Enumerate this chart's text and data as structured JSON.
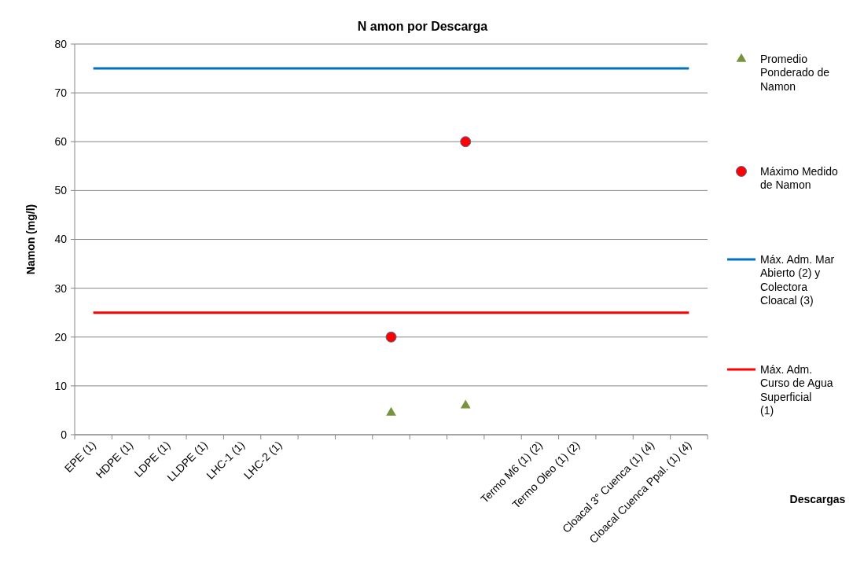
{
  "chart_data": {
    "type": "scatter",
    "title": "N amon por Descarga",
    "annotations": [
      "Descargas"
    ],
    "ylabel": "Namon (mg/l)",
    "categories": [
      "EPE (1)",
      "HDPE (1)",
      "LDPE (1)",
      "LLDPE (1)",
      "LHC-1 (1)",
      "LHC-2 (1)",
      null,
      null,
      null,
      null,
      null,
      null,
      "Termo M6 (1) (2)",
      "Termo Oleo (1) (2)",
      null,
      "Cloacal 3° Cuenca (1) (4)",
      "Cloacal Cuenca Ppal. (1) (4)"
    ],
    "series": [
      {
        "name": "Promedio Ponderado de Namon",
        "marker": "triangle",
        "color": "#77933c",
        "values": [
          null,
          null,
          null,
          null,
          null,
          null,
          null,
          null,
          4.5,
          null,
          6,
          null,
          null,
          null,
          null,
          null,
          null
        ]
      },
      {
        "name": "Máximo Medido de Namon",
        "marker": "circle",
        "color": "#ff0000",
        "values": [
          null,
          null,
          null,
          null,
          null,
          null,
          null,
          null,
          20,
          null,
          60,
          null,
          null,
          null,
          null,
          null,
          null
        ]
      },
      {
        "name": "Máx. Adm. Mar Abierto (2) y Colectora Cloacal (3)",
        "type": "line",
        "marker": "none",
        "color": "#0070c0",
        "values": [
          75,
          75,
          75,
          75,
          75,
          75,
          75,
          75,
          75,
          75,
          75,
          75,
          75,
          75,
          75,
          75,
          75
        ]
      },
      {
        "name": "Máx. Adm. Curso de Agua Superficial (1)",
        "type": "line",
        "marker": "none",
        "color": "#ff0000",
        "values": [
          25,
          25,
          25,
          25,
          25,
          25,
          25,
          25,
          25,
          25,
          25,
          25,
          25,
          25,
          25,
          25,
          25
        ]
      }
    ],
    "ylim": [
      0,
      80
    ],
    "yticks": [
      0,
      10,
      20,
      30,
      40,
      50,
      60,
      70,
      80
    ],
    "grid": "y",
    "legend": "right"
  }
}
